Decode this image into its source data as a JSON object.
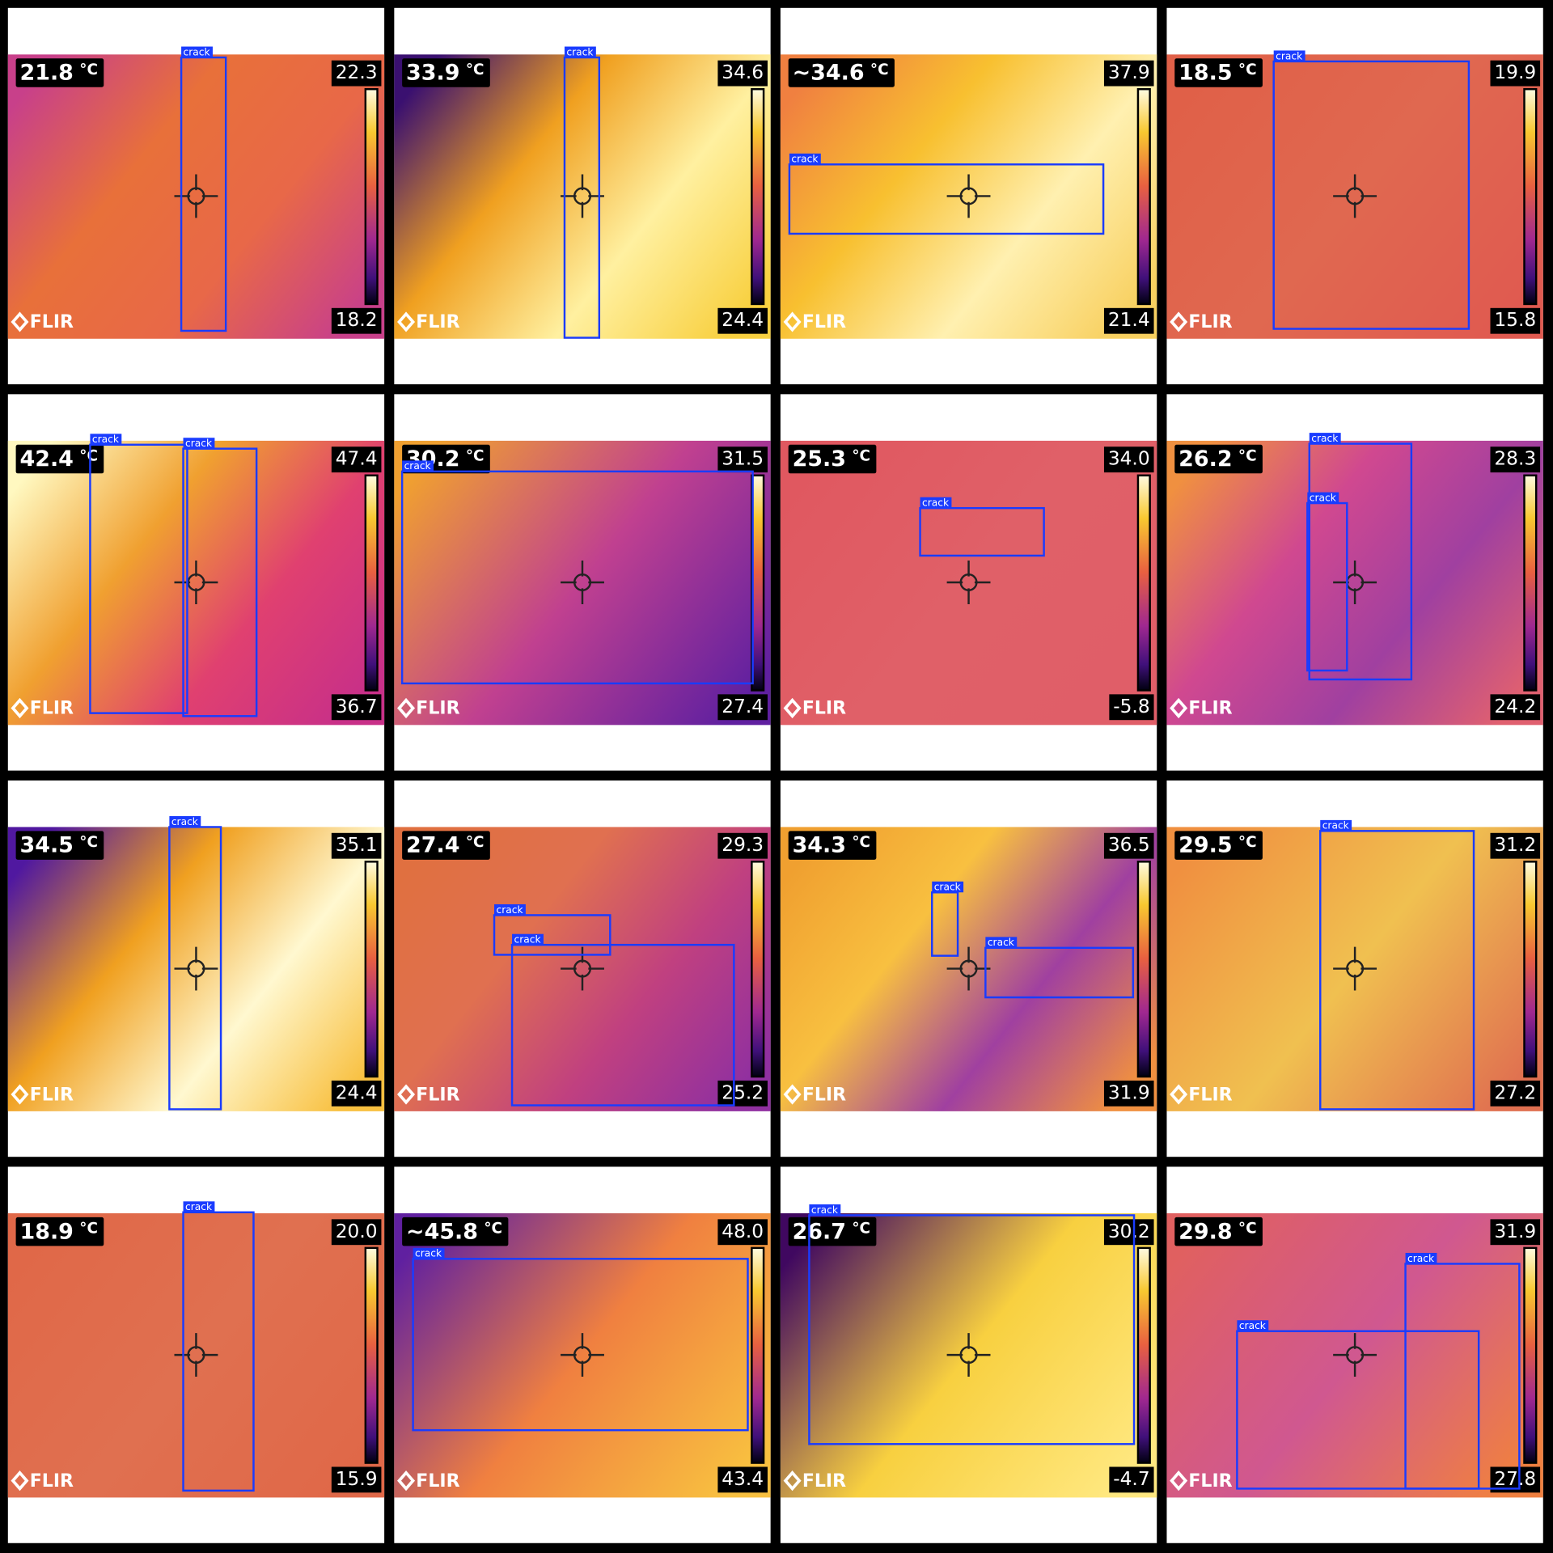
{
  "tiles": [
    {
      "spot": "21.8",
      "unit": "°C",
      "max": "22.3",
      "min": "18.2",
      "logo": "FLIR",
      "detections": [
        {
          "label": "crack"
        }
      ]
    },
    {
      "spot": "33.9",
      "unit": "°C",
      "max": "34.6",
      "min": "24.4",
      "logo": "FLIR",
      "detections": [
        {
          "label": "crack"
        }
      ]
    },
    {
      "spot": "~34.6",
      "unit": "°C",
      "max": "37.9",
      "min": "21.4",
      "logo": "FLIR",
      "detections": [
        {
          "label": "crack"
        }
      ]
    },
    {
      "spot": "18.5",
      "unit": "°C",
      "max": "19.9",
      "min": "15.8",
      "logo": "FLIR",
      "detections": [
        {
          "label": "crack"
        }
      ]
    },
    {
      "spot": "42.4",
      "unit": "°C",
      "max": "47.4",
      "min": "36.7",
      "logo": "FLIR",
      "detections": [
        {
          "label": "crack"
        },
        {
          "label": "crack"
        }
      ]
    },
    {
      "spot": "30.2",
      "unit": "°C",
      "max": "31.5",
      "min": "27.4",
      "logo": "FLIR",
      "detections": [
        {
          "label": "crack"
        }
      ]
    },
    {
      "spot": "25.3",
      "unit": "°C",
      "max": "34.0",
      "min": "-5.8",
      "logo": "FLIR",
      "detections": [
        {
          "label": "crack"
        }
      ]
    },
    {
      "spot": "26.2",
      "unit": "°C",
      "max": "28.3",
      "min": "24.2",
      "logo": "FLIR",
      "detections": [
        {
          "label": "crack"
        },
        {
          "label": "crack"
        }
      ]
    },
    {
      "spot": "34.5",
      "unit": "°C",
      "max": "35.1",
      "min": "24.4",
      "logo": "FLIR",
      "detections": [
        {
          "label": "crack"
        }
      ]
    },
    {
      "spot": "27.4",
      "unit": "°C",
      "max": "29.3",
      "min": "25.2",
      "logo": "FLIR",
      "detections": [
        {
          "label": "crack"
        },
        {
          "label": "crack"
        }
      ]
    },
    {
      "spot": "34.3",
      "unit": "°C",
      "max": "36.5",
      "min": "31.9",
      "logo": "FLIR",
      "detections": [
        {
          "label": "crack"
        },
        {
          "label": "crack"
        }
      ]
    },
    {
      "spot": "29.5",
      "unit": "°C",
      "max": "31.2",
      "min": "27.2",
      "logo": "FLIR",
      "detections": [
        {
          "label": "crack"
        }
      ]
    },
    {
      "spot": "18.9",
      "unit": "°C",
      "max": "20.0",
      "min": "15.9",
      "logo": "FLIR",
      "detections": [
        {
          "label": "crack"
        }
      ]
    },
    {
      "spot": "~45.8",
      "unit": "°C",
      "max": "48.0",
      "min": "43.4",
      "logo": "FLIR",
      "detections": [
        {
          "label": "crack"
        }
      ]
    },
    {
      "spot": "26.7",
      "unit": "°C",
      "max": "30.2",
      "min": "-4.7",
      "logo": "FLIR",
      "detections": [
        {
          "label": "crack"
        }
      ]
    },
    {
      "spot": "29.8",
      "unit": "°C",
      "max": "31.9",
      "min": "27.8",
      "logo": "FLIR",
      "detections": [
        {
          "label": "crack"
        },
        {
          "label": "crack"
        }
      ]
    }
  ]
}
